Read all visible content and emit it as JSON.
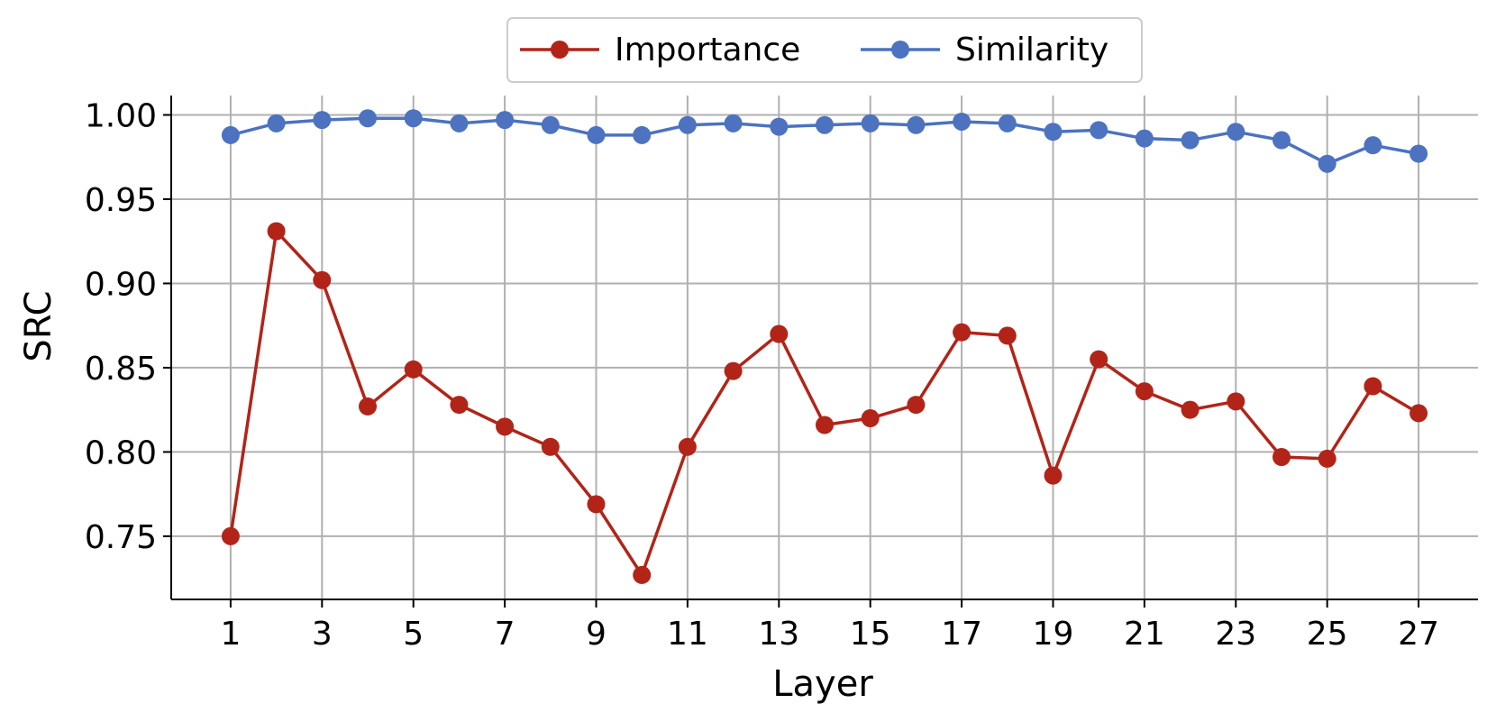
{
  "chart_data": {
    "type": "line",
    "xlabel": "Layer",
    "ylabel": "SRC",
    "x": [
      1,
      2,
      3,
      4,
      5,
      6,
      7,
      8,
      9,
      10,
      11,
      12,
      13,
      14,
      15,
      16,
      17,
      18,
      19,
      20,
      21,
      22,
      23,
      24,
      25,
      26,
      27
    ],
    "xticks": [
      1,
      3,
      5,
      7,
      9,
      11,
      13,
      15,
      17,
      19,
      21,
      23,
      25,
      27
    ],
    "xtick_labels": [
      "1",
      "3",
      "5",
      "7",
      "9",
      "11",
      "13",
      "15",
      "17",
      "19",
      "21",
      "23",
      "25",
      "27"
    ],
    "yticks": [
      0.75,
      0.8,
      0.85,
      0.9,
      0.95,
      1.0
    ],
    "ytick_labels": [
      "0.75",
      "0.80",
      "0.85",
      "0.90",
      "0.95",
      "1.00"
    ],
    "xlim": [
      -0.3,
      28.3
    ],
    "ylim": [
      0.7125,
      1.0115
    ],
    "grid": true,
    "legend_position": "top-center",
    "series": [
      {
        "name": "Importance",
        "color": "#b22418",
        "values": [
          0.75,
          0.931,
          0.902,
          0.827,
          0.849,
          0.828,
          0.815,
          0.803,
          0.769,
          0.727,
          0.803,
          0.848,
          0.87,
          0.816,
          0.82,
          0.828,
          0.871,
          0.869,
          0.786,
          0.855,
          0.836,
          0.825,
          0.83,
          0.797,
          0.796,
          0.839,
          0.823
        ]
      },
      {
        "name": "Similarity",
        "color": "#4c72c0",
        "values": [
          0.988,
          0.995,
          0.997,
          0.998,
          0.998,
          0.995,
          0.997,
          0.994,
          0.988,
          0.988,
          0.994,
          0.995,
          0.993,
          0.994,
          0.995,
          0.994,
          0.996,
          0.995,
          0.99,
          0.991,
          0.986,
          0.985,
          0.99,
          0.985,
          0.971,
          0.982,
          0.977
        ]
      }
    ]
  }
}
